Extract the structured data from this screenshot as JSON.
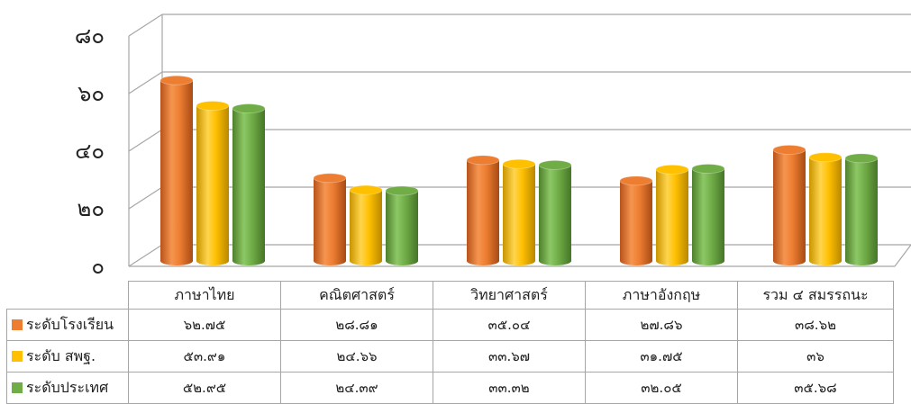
{
  "chart_data": {
    "type": "bar",
    "title": "",
    "xlabel": "",
    "ylabel": "",
    "categories": [
      "ภาษาไทย",
      "คณิตศาสตร์",
      "วิทยาศาสตร์",
      "ภาษาอังกฤษ",
      "รวม ๔ สมรรถนะ"
    ],
    "y_ticks": [
      "๐",
      "๒๐",
      "๔๐",
      "๖๐",
      "๘๐"
    ],
    "ylim": [
      0,
      80
    ],
    "grid": true,
    "series": [
      {
        "name": "ระดับโรงเรียน",
        "color": "#ed7d31",
        "values": [
          62.75,
          28.81,
          35.04,
          27.86,
          38.62
        ],
        "labels": [
          "๖๒.๗๕",
          "๒๘.๘๑",
          "๓๕.๐๔",
          "๒๗.๘๖",
          "๓๘.๖๒"
        ]
      },
      {
        "name": "ระดับ สพฐ.",
        "color": "#ffc000",
        "values": [
          53.91,
          24.66,
          33.67,
          31.75,
          36
        ],
        "labels": [
          "๕๓.๙๑",
          "๒๔.๖๖",
          "๓๓.๖๗",
          "๓๑.๗๕",
          "๓๖"
        ]
      },
      {
        "name": "ระดับประเทศ",
        "color": "#70ad47",
        "values": [
          52.95,
          24.39,
          33.32,
          32.05,
          35.68
        ],
        "labels": [
          "๕๒.๙๕",
          "๒๔.๓๙",
          "๓๓.๓๒",
          "๓๒.๐๕",
          "๓๕.๖๘"
        ]
      }
    ]
  }
}
